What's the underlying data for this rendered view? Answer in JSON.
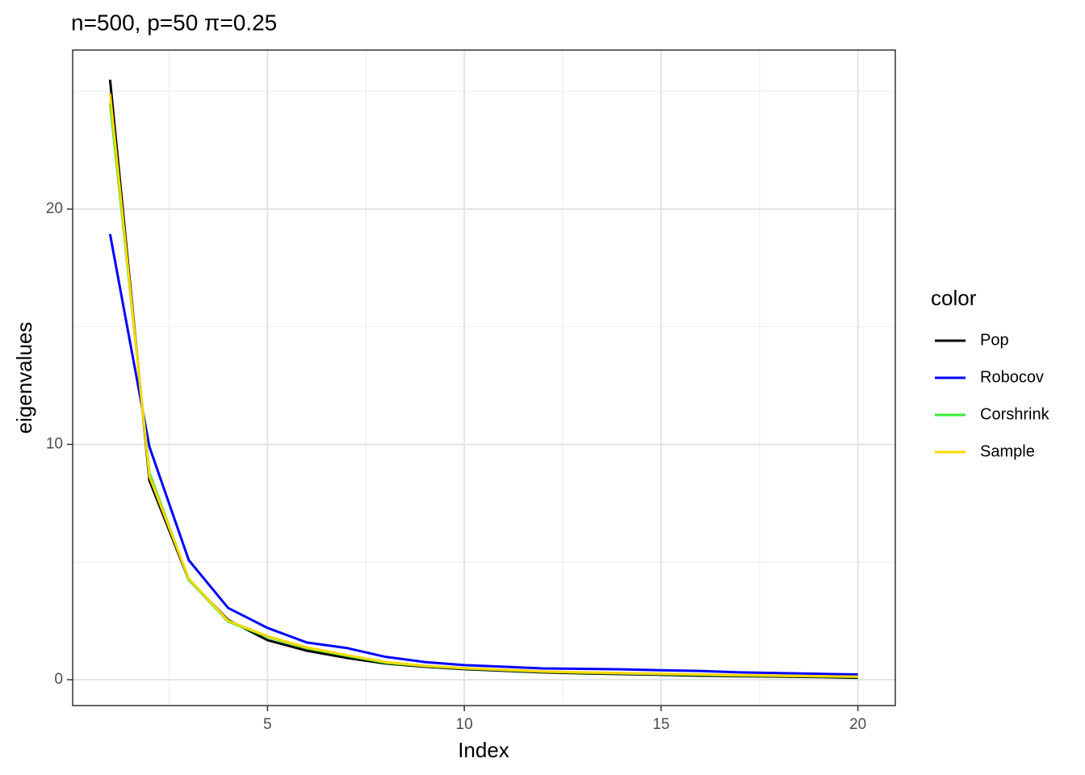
{
  "chart_data": {
    "type": "line",
    "title": "n=500, p=50 π=0.25",
    "x_label": "Index",
    "y_label": "eigenvalues",
    "legend_title": "color",
    "x": [
      1,
      2,
      3,
      4,
      5,
      6,
      7,
      8,
      9,
      10,
      11,
      12,
      13,
      14,
      15,
      16,
      17,
      18,
      19,
      20
    ],
    "series": [
      {
        "name": "Pop",
        "color": "#000000",
        "values": [
          25.5,
          8.47,
          4.25,
          2.54,
          1.68,
          1.23,
          0.93,
          0.69,
          0.55,
          0.45,
          0.38,
          0.31,
          0.27,
          0.24,
          0.21,
          0.17,
          0.15,
          0.13,
          0.11,
          0.08
        ]
      },
      {
        "name": "Robocov",
        "color": "#0000ff",
        "values": [
          18.94,
          9.9,
          5.08,
          3.05,
          2.2,
          1.58,
          1.35,
          0.97,
          0.75,
          0.62,
          0.55,
          0.48,
          0.46,
          0.44,
          0.4,
          0.37,
          0.31,
          0.28,
          0.25,
          0.22
        ]
      },
      {
        "name": "Corshrink",
        "color": "#33ee33",
        "values": [
          24.5,
          8.8,
          4.25,
          2.47,
          1.82,
          1.34,
          1.02,
          0.72,
          0.58,
          0.48,
          0.41,
          0.34,
          0.3,
          0.27,
          0.24,
          0.21,
          0.18,
          0.16,
          0.14,
          0.12
        ]
      },
      {
        "name": "Sample",
        "color": "#ffd700",
        "values": [
          24.9,
          8.65,
          4.3,
          2.5,
          1.85,
          1.37,
          1.05,
          0.75,
          0.59,
          0.49,
          0.42,
          0.35,
          0.31,
          0.28,
          0.25,
          0.22,
          0.19,
          0.17,
          0.15,
          0.13
        ]
      }
    ],
    "xlim": [
      0.05,
      20.95
    ],
    "ylim": [
      -1.1,
      26.76
    ],
    "xticks": [
      5,
      10,
      15,
      20
    ],
    "yticks": [
      0,
      10,
      20
    ],
    "xminor_ticks": [
      2.5,
      7.5,
      12.5,
      17.5
    ],
    "yminor_ticks": [
      5,
      15,
      25
    ],
    "grid": true,
    "legend": "right"
  }
}
